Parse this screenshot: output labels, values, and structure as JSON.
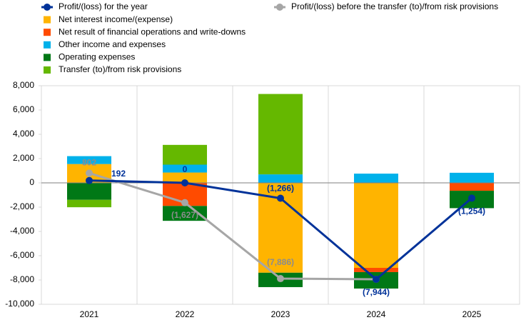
{
  "chart_data": {
    "type": "bar",
    "stacked": true,
    "categories": [
      "2021",
      "2022",
      "2023",
      "2024",
      "2025"
    ],
    "ylim": [
      -10000,
      8000
    ],
    "yticks": [
      {
        "value": 8000,
        "label": "8,000"
      },
      {
        "value": 6000,
        "label": "6,000"
      },
      {
        "value": 4000,
        "label": "4,000"
      },
      {
        "value": 2000,
        "label": "2,000"
      },
      0,
      {
        "value": -2000,
        "label": "-2,000"
      },
      {
        "value": -4000,
        "label": "-4,000"
      },
      {
        "value": -6000,
        "label": "-6,000"
      },
      {
        "value": -8000,
        "label": "-8,000"
      },
      {
        "value": -10000,
        "label": "-10,000"
      }
    ],
    "series": [
      {
        "name": "Profit/(loss) for the year",
        "type": "line",
        "color": "#003299",
        "values": [
          192,
          0,
          -1266,
          -7944,
          -1254
        ],
        "value_labels": [
          "192",
          "0",
          "(1,266)",
          "(7,944)",
          "(1,254)"
        ]
      },
      {
        "name": "Net interest income/(expense)",
        "color": "#FFB400",
        "values": [
          1550,
          850,
          -7400,
          -7000,
          0
        ]
      },
      {
        "name": "Net result of financial operations and write-downs",
        "color": "#FF4B00",
        "values": [
          0,
          -1900,
          0,
          -350,
          -650
        ]
      },
      {
        "name": "Other income and expenses",
        "color": "#00B1EA",
        "values": [
          650,
          650,
          700,
          760,
          830
        ]
      },
      {
        "name": "Operating expenses",
        "color": "#007816",
        "values": [
          -1398,
          -1227,
          -1186,
          -1354,
          -1434
        ]
      },
      {
        "name": "Transfer (to)/from risk provisions",
        "color": "#65B800",
        "values": [
          -610,
          1627,
          6620,
          0,
          0
        ]
      },
      {
        "name": "Profit/(loss) before the transfer (to)/from risk provisions",
        "type": "line",
        "color": "#A6A6A6",
        "values": [
          802,
          -1627,
          -7886,
          -7944,
          null
        ],
        "value_labels": [
          "802",
          "(1,627)",
          "(7,886)",
          null,
          null
        ]
      }
    ]
  }
}
